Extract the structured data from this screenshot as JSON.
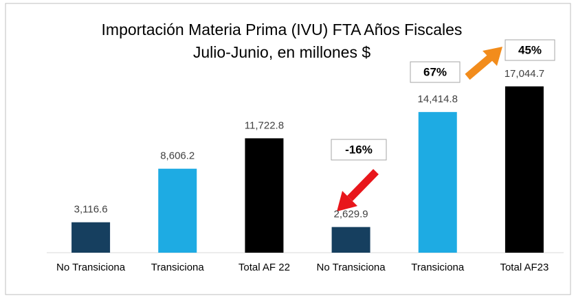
{
  "chart_data": {
    "type": "bar",
    "title": "Importación Materia Prima (IVU) FTA Años Fiscales",
    "subtitle": "Julio-Junio, en millones $",
    "categories": [
      "No Transiciona",
      "Transiciona",
      "Total AF 22",
      "No Transiciona",
      "Transiciona",
      "Total AF23"
    ],
    "values": [
      3116.6,
      8606.2,
      11722.8,
      2629.9,
      14414.8,
      17044.7
    ],
    "value_labels": [
      "3,116.6",
      "8,606.2",
      "11,722.8",
      "2,629.9",
      "14,414.8",
      "17,044.7"
    ],
    "colors": [
      "#163f5f",
      "#1eabe3",
      "#000000",
      "#163f5f",
      "#1eabe3",
      "#000000"
    ],
    "ylim": [
      0,
      19000
    ],
    "annotations": [
      "-16%",
      "67%",
      "45%"
    ]
  }
}
